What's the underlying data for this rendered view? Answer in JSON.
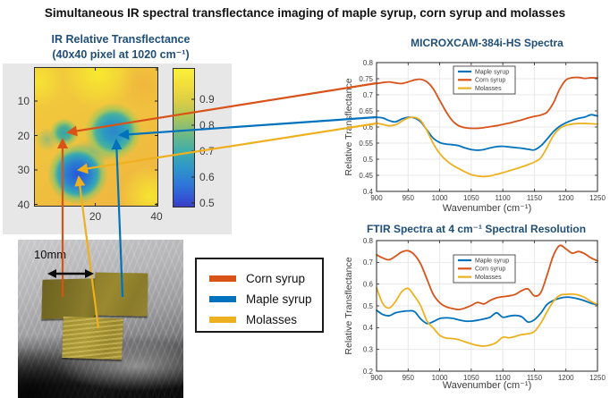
{
  "title": "Simultaneous IR spectral transflectance imaging of maple syrup, corn syrup and molasses",
  "colors": {
    "corn_syrup": "#D95319",
    "maple_syrup": "#0072BD",
    "molasses": "#EDB120",
    "chart_title": "#1F4E79",
    "heatmap_high": "#F8E93C",
    "heatmap_low": "#3A43BF"
  },
  "heatmap": {
    "title_line1": "IR Relative Transflectance",
    "title_line2": "(40x40 pixel at 1020 cm⁻¹)",
    "xtick_labels": [
      "20",
      "40"
    ],
    "ytick_labels": [
      "10",
      "20",
      "30",
      "40"
    ],
    "colorbar_tick_labels": [
      "0.9",
      "0.8",
      "0.7",
      "0.6",
      "0.5"
    ]
  },
  "photo": {
    "scale_label": "10mm"
  },
  "legend": {
    "items": [
      {
        "label": "Corn syrup",
        "color": "#D95319"
      },
      {
        "label": "Maple syrup",
        "color": "#0072BD"
      },
      {
        "label": "Molasses",
        "color": "#EDB120"
      }
    ]
  },
  "chart_data": [
    {
      "type": "line",
      "title": "MICROXCAM-384i-HS Spectra",
      "xlabel": "Wavenumber (cm⁻¹)",
      "ylabel": "Relative Transflectance",
      "xlim": [
        900,
        1250
      ],
      "ylim": [
        0.4,
        0.8
      ],
      "xticks": [
        900,
        950,
        1000,
        1050,
        1100,
        1150,
        1200,
        1250
      ],
      "yticks": [
        0.4,
        0.45,
        0.5,
        0.55,
        0.6,
        0.65,
        0.7,
        0.75,
        0.8
      ],
      "grid": true,
      "legend_position": "upper center",
      "x": [
        900,
        910,
        920,
        930,
        940,
        950,
        960,
        970,
        980,
        990,
        1000,
        1010,
        1020,
        1030,
        1040,
        1050,
        1060,
        1070,
        1080,
        1090,
        1100,
        1110,
        1120,
        1130,
        1140,
        1150,
        1160,
        1170,
        1180,
        1190,
        1200,
        1210,
        1220,
        1230,
        1240,
        1250
      ],
      "series": [
        {
          "name": "Maple syrup",
          "color": "#0072BD",
          "values": [
            0.63,
            0.628,
            0.62,
            0.616,
            0.625,
            0.63,
            0.628,
            0.616,
            0.59,
            0.565,
            0.552,
            0.547,
            0.545,
            0.542,
            0.535,
            0.53,
            0.528,
            0.53,
            0.535,
            0.539,
            0.54,
            0.538,
            0.536,
            0.534,
            0.531,
            0.529,
            0.541,
            0.562,
            0.585,
            0.602,
            0.613,
            0.621,
            0.627,
            0.631,
            0.638,
            0.634
          ]
        },
        {
          "name": "Corn syrup",
          "color": "#D95319",
          "values": [
            0.735,
            0.738,
            0.74,
            0.737,
            0.735,
            0.74,
            0.746,
            0.748,
            0.74,
            0.718,
            0.683,
            0.648,
            0.62,
            0.604,
            0.598,
            0.596,
            0.596,
            0.598,
            0.601,
            0.604,
            0.608,
            0.612,
            0.617,
            0.622,
            0.628,
            0.633,
            0.637,
            0.646,
            0.674,
            0.717,
            0.746,
            0.753,
            0.754,
            0.751,
            0.753,
            0.752
          ]
        },
        {
          "name": "Molasses",
          "color": "#EDB120",
          "values": [
            0.612,
            0.608,
            0.604,
            0.607,
            0.618,
            0.628,
            0.63,
            0.62,
            0.588,
            0.548,
            0.518,
            0.497,
            0.482,
            0.471,
            0.461,
            0.452,
            0.448,
            0.446,
            0.448,
            0.453,
            0.458,
            0.464,
            0.47,
            0.476,
            0.483,
            0.491,
            0.504,
            0.536,
            0.573,
            0.595,
            0.605,
            0.609,
            0.611,
            0.611,
            0.61,
            0.609
          ]
        }
      ]
    },
    {
      "type": "line",
      "title": "FTIR Spectra at 4 cm⁻¹ Spectral Resolution",
      "xlabel": "Wavenumber (cm⁻¹)",
      "ylabel": "Relative Transflectance",
      "xlim": [
        900,
        1250
      ],
      "ylim": [
        0.2,
        0.8
      ],
      "xticks": [
        900,
        950,
        1000,
        1050,
        1100,
        1150,
        1200,
        1250
      ],
      "yticks": [
        0.2,
        0.3,
        0.4,
        0.5,
        0.6,
        0.7,
        0.8
      ],
      "grid": true,
      "legend_position": "upper center",
      "x": [
        900,
        910,
        920,
        930,
        940,
        950,
        960,
        970,
        980,
        990,
        1000,
        1010,
        1020,
        1030,
        1040,
        1050,
        1060,
        1070,
        1080,
        1090,
        1100,
        1110,
        1120,
        1130,
        1140,
        1150,
        1160,
        1170,
        1180,
        1190,
        1200,
        1210,
        1220,
        1230,
        1240,
        1250
      ],
      "series": [
        {
          "name": "Maple syrup",
          "color": "#0072BD",
          "values": [
            0.48,
            0.46,
            0.455,
            0.468,
            0.474,
            0.477,
            0.474,
            0.44,
            0.419,
            0.428,
            0.442,
            0.445,
            0.443,
            0.436,
            0.43,
            0.43,
            0.434,
            0.44,
            0.448,
            0.468,
            0.448,
            0.453,
            0.456,
            0.45,
            0.426,
            0.436,
            0.466,
            0.506,
            0.525,
            0.535,
            0.54,
            0.538,
            0.532,
            0.523,
            0.512,
            0.506
          ]
        },
        {
          "name": "Corn syrup",
          "color": "#D95319",
          "values": [
            0.735,
            0.72,
            0.712,
            0.728,
            0.748,
            0.753,
            0.735,
            0.692,
            0.622,
            0.552,
            0.515,
            0.496,
            0.488,
            0.483,
            0.49,
            0.502,
            0.516,
            0.509,
            0.525,
            0.537,
            0.542,
            0.546,
            0.553,
            0.57,
            0.578,
            0.546,
            0.56,
            0.64,
            0.73,
            0.777,
            0.762,
            0.742,
            0.75,
            0.739,
            0.72,
            0.707
          ]
        },
        {
          "name": "Molasses",
          "color": "#EDB120",
          "values": [
            0.583,
            0.51,
            0.49,
            0.52,
            0.565,
            0.58,
            0.545,
            0.5,
            0.43,
            0.398,
            0.365,
            0.352,
            0.35,
            0.345,
            0.335,
            0.326,
            0.318,
            0.315,
            0.32,
            0.332,
            0.356,
            0.353,
            0.36,
            0.368,
            0.372,
            0.382,
            0.42,
            0.472,
            0.52,
            0.548,
            0.553,
            0.554,
            0.55,
            0.538,
            0.52,
            0.507
          ]
        }
      ]
    }
  ],
  "connectors": [
    {
      "name": "corn-syrup-spectrum-link",
      "color": "#D95319",
      "from": [
        421,
        93
      ],
      "to": [
        76,
        148
      ]
    },
    {
      "name": "maple-syrup-spectrum-link",
      "color": "#0072BD",
      "from": [
        421,
        131
      ],
      "to": [
        134,
        151
      ]
    },
    {
      "name": "molasses-spectrum-link",
      "color": "#EDB120",
      "from": [
        421,
        138
      ],
      "to": [
        88,
        190
      ]
    },
    {
      "name": "corn-syrup-sample-link",
      "color": "#D95319",
      "from": [
        70,
        332
      ],
      "to": [
        70,
        156
      ]
    },
    {
      "name": "maple-syrup-sample-link",
      "color": "#0072BD",
      "from": [
        137,
        332
      ],
      "to": [
        130,
        157
      ]
    },
    {
      "name": "molasses-sample-link",
      "color": "#EDB120",
      "from": [
        110,
        367
      ],
      "to": [
        88,
        198
      ]
    }
  ]
}
